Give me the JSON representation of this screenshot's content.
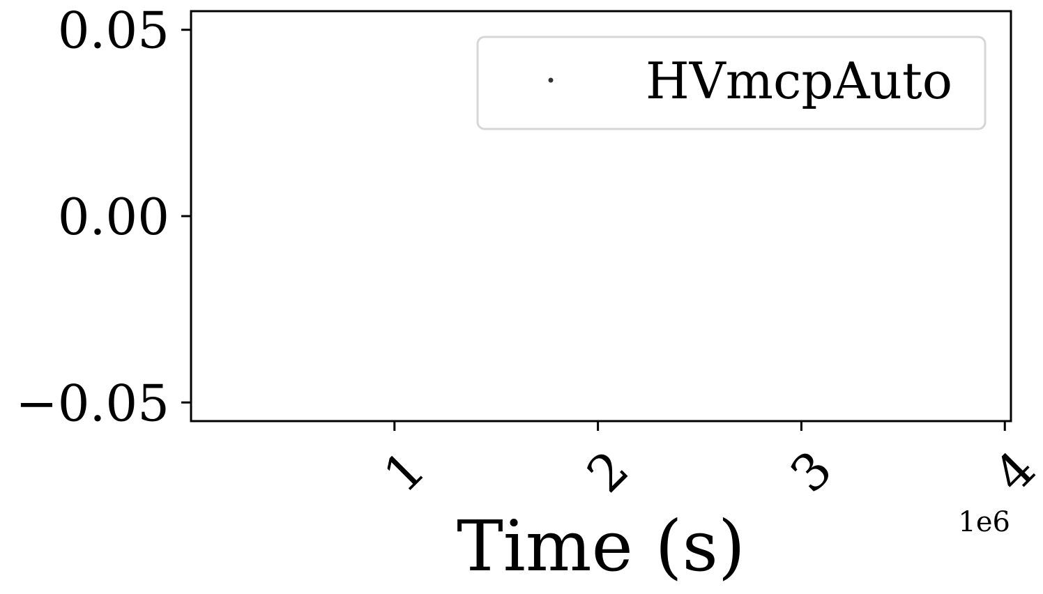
{
  "chart_data": {
    "type": "scatter",
    "title": "",
    "xlabel": "Time (s)",
    "ylabel": "",
    "x_offset_label": "1e6",
    "xlim": [
      0.0,
      4.03
    ],
    "ylim": [
      -0.055,
      0.055
    ],
    "x_ticks": [
      1,
      2,
      3,
      4
    ],
    "x_tick_labels": [
      "1",
      "2",
      "3",
      "4"
    ],
    "y_ticks": [
      0.05,
      0.0,
      -0.05
    ],
    "y_tick_labels": [
      "0.05",
      "0.00",
      "−0.05"
    ],
    "grid": false,
    "legend_position": "top-right",
    "series": [
      {
        "name": "HVmcpAuto",
        "marker": "point",
        "color": "#333333",
        "x": [],
        "y": []
      }
    ]
  }
}
